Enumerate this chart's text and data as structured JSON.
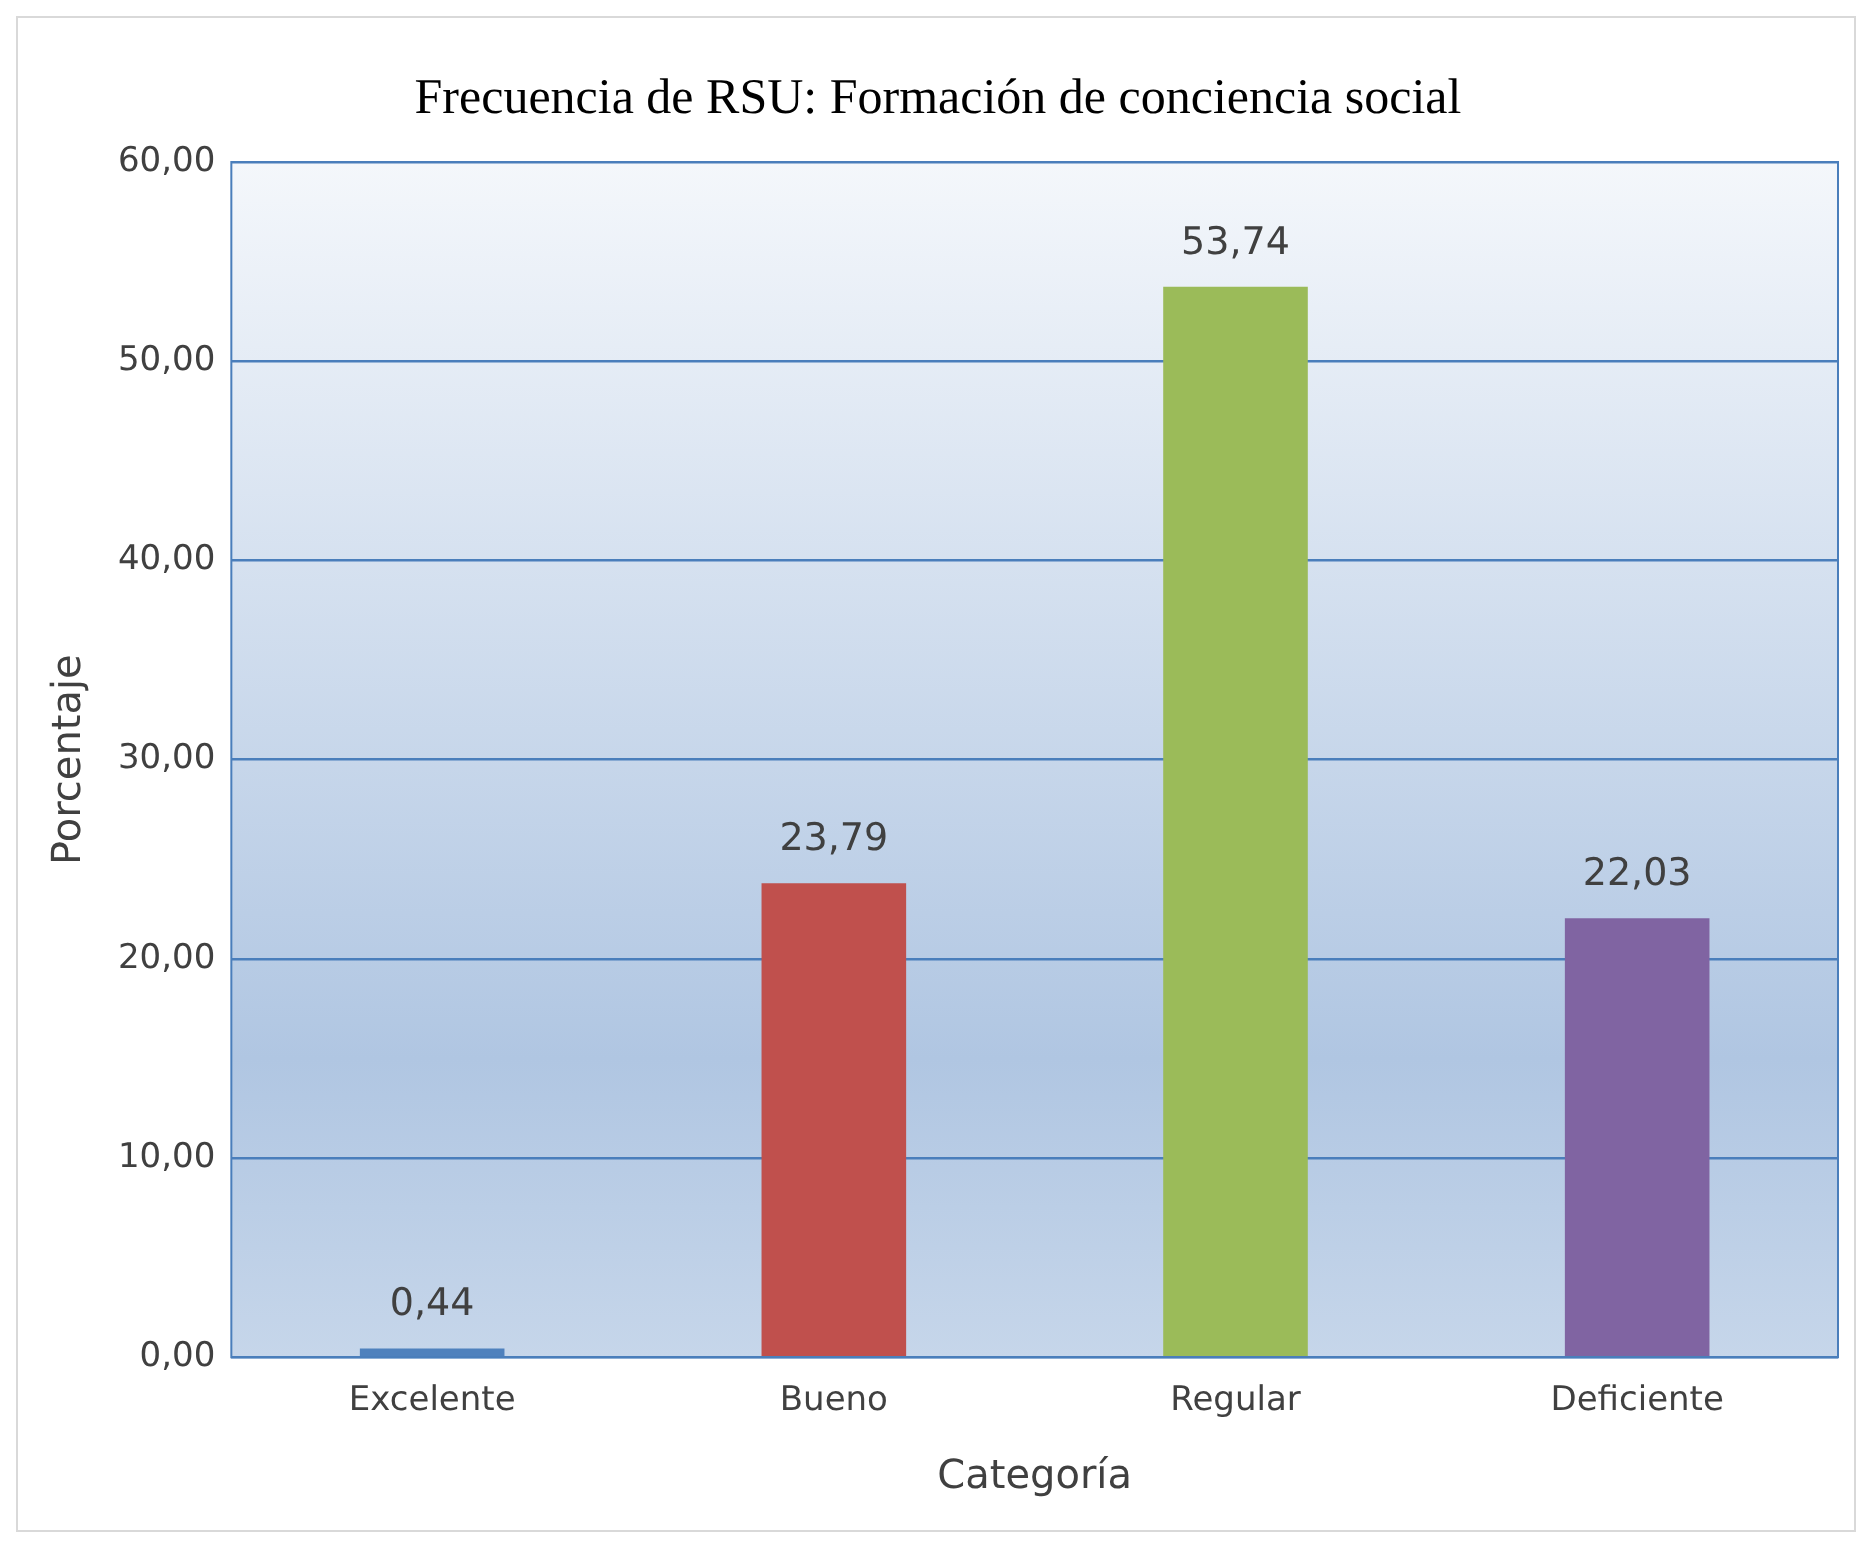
{
  "chart_data": {
    "type": "bar",
    "title": "Frecuencia de RSU: Formación de conciencia social",
    "xlabel": "Categoría",
    "ylabel": "Porcentaje",
    "categories": [
      "Excelente",
      "Bueno",
      "Regular",
      "Deficiente"
    ],
    "values": [
      0.44,
      23.79,
      53.74,
      22.03
    ],
    "colors": [
      "#4f81bd",
      "#c0504d",
      "#9bbb59",
      "#8064a2"
    ],
    "value_labels": [
      "0,44",
      "23,79",
      "53,74",
      "22,03"
    ],
    "ylim": [
      0,
      60
    ],
    "yticks": [
      {
        "value": 0,
        "label": "0,00"
      },
      {
        "value": 10,
        "label": "10,00"
      },
      {
        "value": 20,
        "label": "20,00"
      },
      {
        "value": 30,
        "label": "30,00"
      },
      {
        "value": 40,
        "label": "40,00"
      },
      {
        "value": 50,
        "label": "50,00"
      },
      {
        "value": 60,
        "label": "60,00"
      }
    ],
    "grid": "y",
    "legend": false
  }
}
